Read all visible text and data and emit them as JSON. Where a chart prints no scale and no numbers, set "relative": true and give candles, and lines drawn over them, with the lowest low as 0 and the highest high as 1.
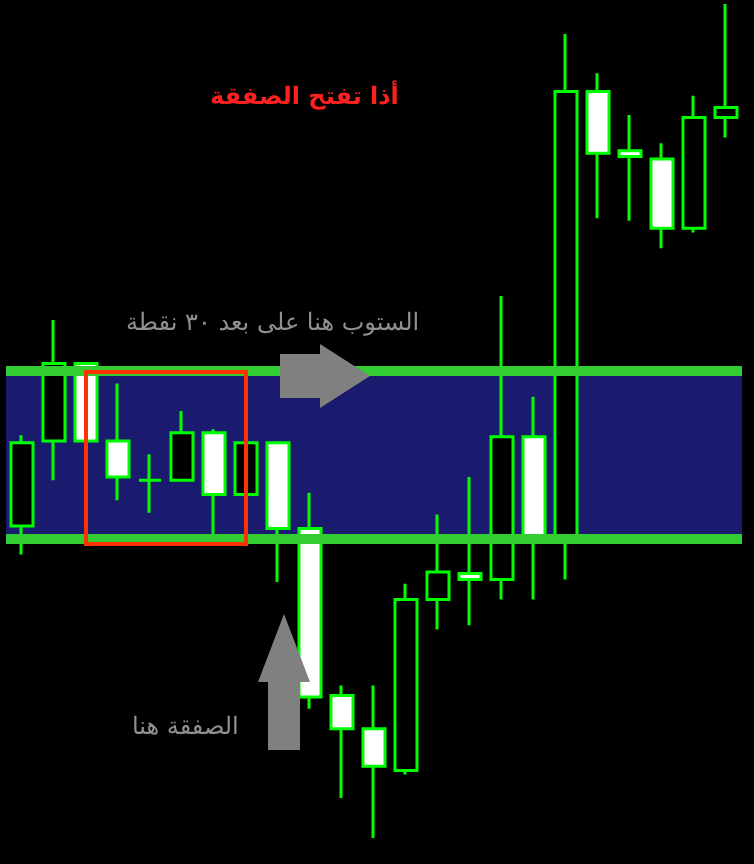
{
  "chart_data": {
    "type": "candlestick",
    "relative": true,
    "categories": [
      null,
      null,
      null,
      null,
      null,
      null,
      null,
      null,
      null,
      null,
      null,
      null,
      null,
      null,
      null,
      null,
      null,
      null,
      null,
      null,
      null,
      null,
      null
    ],
    "ohlc": [
      [
        0.474,
        0.483,
        0.34,
        0.374
      ],
      [
        0.569,
        0.621,
        0.429,
        0.476
      ],
      [
        0.476,
        0.569,
        0.476,
        0.569
      ],
      [
        0.433,
        0.545,
        0.405,
        0.476
      ],
      [
        0.429,
        0.46,
        0.39,
        0.429
      ],
      [
        0.486,
        0.512,
        0.429,
        0.429
      ],
      [
        0.412,
        0.49,
        0.357,
        0.486
      ],
      [
        0.474,
        0.474,
        0.412,
        0.412
      ],
      [
        0.371,
        0.474,
        0.307,
        0.474
      ],
      [
        0.169,
        0.414,
        0.155,
        0.371
      ],
      [
        0.131,
        0.183,
        0.048,
        0.171
      ],
      [
        0.086,
        0.183,
        0,
        0.131
      ],
      [
        0.286,
        0.305,
        0.076,
        0.081
      ],
      [
        0.319,
        0.388,
        0.25,
        0.286
      ],
      [
        0.31,
        0.433,
        0.255,
        0.317
      ],
      [
        0.481,
        0.65,
        0.286,
        0.31
      ],
      [
        0.362,
        0.529,
        0.286,
        0.481
      ],
      [
        0.895,
        0.964,
        0.31,
        0.362
      ],
      [
        0.821,
        0.917,
        0.743,
        0.895
      ],
      [
        0.817,
        0.867,
        0.74,
        0.824
      ],
      [
        0.731,
        0.833,
        0.707,
        0.814
      ],
      [
        0.864,
        0.89,
        0.726,
        0.731
      ],
      [
        0.876,
        1,
        0.84,
        0.864
      ]
    ],
    "bands": [
      {
        "axis": "y",
        "from": 0.357,
        "to": 0.56,
        "color": "#1a1a6e"
      }
    ],
    "ref_lines": [
      {
        "axis": "y",
        "value": 0.56,
        "color": "#33cc33"
      },
      {
        "axis": "y",
        "value": 0.357,
        "color": "#33cc33"
      }
    ],
    "annotations": [
      "أذا تفتح الصفقة",
      "الستوب هنا على بعد ٣٠ نقطة",
      "الصفقة هنا"
    ],
    "grid": false
  }
}
